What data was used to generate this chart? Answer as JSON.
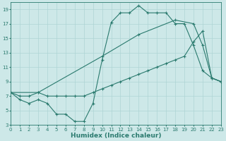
{
  "line1_x": [
    0,
    1,
    2,
    3,
    4,
    5,
    6,
    7,
    8,
    9,
    10,
    11,
    12,
    13,
    14,
    15,
    16,
    17,
    18,
    19,
    20,
    21,
    22,
    23
  ],
  "line1_y": [
    7.5,
    6.5,
    6.0,
    6.5,
    6.0,
    4.5,
    4.5,
    3.5,
    3.5,
    6.0,
    12.0,
    17.2,
    18.5,
    18.5,
    19.5,
    18.5,
    18.5,
    18.5,
    17.0,
    17.0,
    14.0,
    10.5,
    9.5,
    9.0
  ],
  "line2_x": [
    0,
    1,
    2,
    3,
    4,
    5,
    6,
    7,
    8,
    9,
    10,
    11,
    12,
    13,
    14,
    15,
    16,
    17,
    18,
    19,
    20,
    21,
    22,
    23
  ],
  "line2_y": [
    7.5,
    7.0,
    7.0,
    7.5,
    7.0,
    7.0,
    7.0,
    7.0,
    7.0,
    7.5,
    8.0,
    8.5,
    9.0,
    9.5,
    10.0,
    10.5,
    11.0,
    11.5,
    12.0,
    12.5,
    14.5,
    16.0,
    9.5,
    9.0
  ],
  "line3_x": [
    0,
    3,
    10,
    14,
    18,
    20,
    21,
    22,
    23
  ],
  "line3_y": [
    7.5,
    7.5,
    12.5,
    15.5,
    17.5,
    17.0,
    14.0,
    9.5,
    9.0
  ],
  "color": "#2a7a6e",
  "bg_color": "#cde8e8",
  "grid_color": "#aed4d4",
  "xlabel": "Humidex (Indice chaleur)",
  "xlim": [
    0,
    23
  ],
  "ylim": [
    3,
    20
  ],
  "xticks": [
    0,
    1,
    2,
    3,
    4,
    5,
    6,
    7,
    8,
    9,
    10,
    11,
    12,
    13,
    14,
    15,
    16,
    17,
    18,
    19,
    20,
    21,
    22,
    23
  ],
  "yticks": [
    3,
    5,
    7,
    9,
    11,
    13,
    15,
    17,
    19
  ],
  "label_fontsize": 6.5,
  "tick_fontsize": 5.0
}
